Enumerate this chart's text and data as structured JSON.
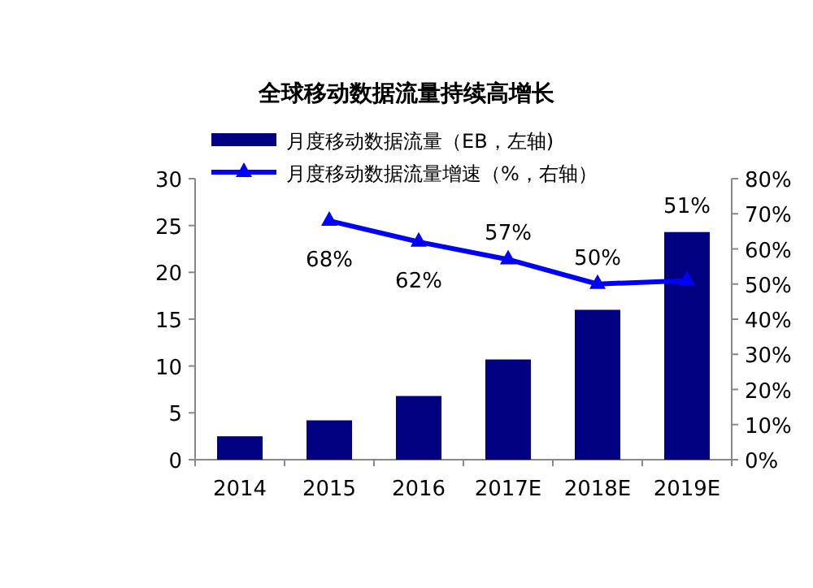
{
  "chart_data": {
    "type": "bar",
    "title": "全球移动数据流量持续高增长",
    "categories": [
      "2014",
      "2015",
      "2016",
      "2017E",
      "2018E",
      "2019E"
    ],
    "series": [
      {
        "name": "月度移动数据流量（EB，左轴)",
        "color": "#000080",
        "values": [
          2.5,
          4.2,
          6.8,
          10.7,
          16,
          24.3
        ]
      },
      {
        "name": "月度移动数据流量增速（%，右轴）",
        "type": "line",
        "axis": "y2",
        "color": "#0000ff",
        "marker": "triangle",
        "values": [
          null,
          68,
          62,
          57,
          50,
          51
        ],
        "value_labels": [
          null,
          "68%",
          "62%",
          "57%",
          "50%",
          "51%"
        ]
      }
    ],
    "ylim": [
      0,
      30
    ],
    "yticks": [
      0,
      5,
      10,
      15,
      20,
      25,
      30
    ],
    "y2lim": [
      0,
      80
    ],
    "y2ticks": [
      {
        "value": 0,
        "label": "0%"
      },
      {
        "value": 10,
        "label": "10%"
      },
      {
        "value": 20,
        "label": "20%"
      },
      {
        "value": 30,
        "label": "30%"
      },
      {
        "value": 40,
        "label": "40%"
      },
      {
        "value": 50,
        "label": "50%"
      },
      {
        "value": 60,
        "label": "60%"
      },
      {
        "value": 70,
        "label": "70%"
      },
      {
        "value": 80,
        "label": "80%"
      }
    ],
    "legend": "top left",
    "grid": false
  }
}
